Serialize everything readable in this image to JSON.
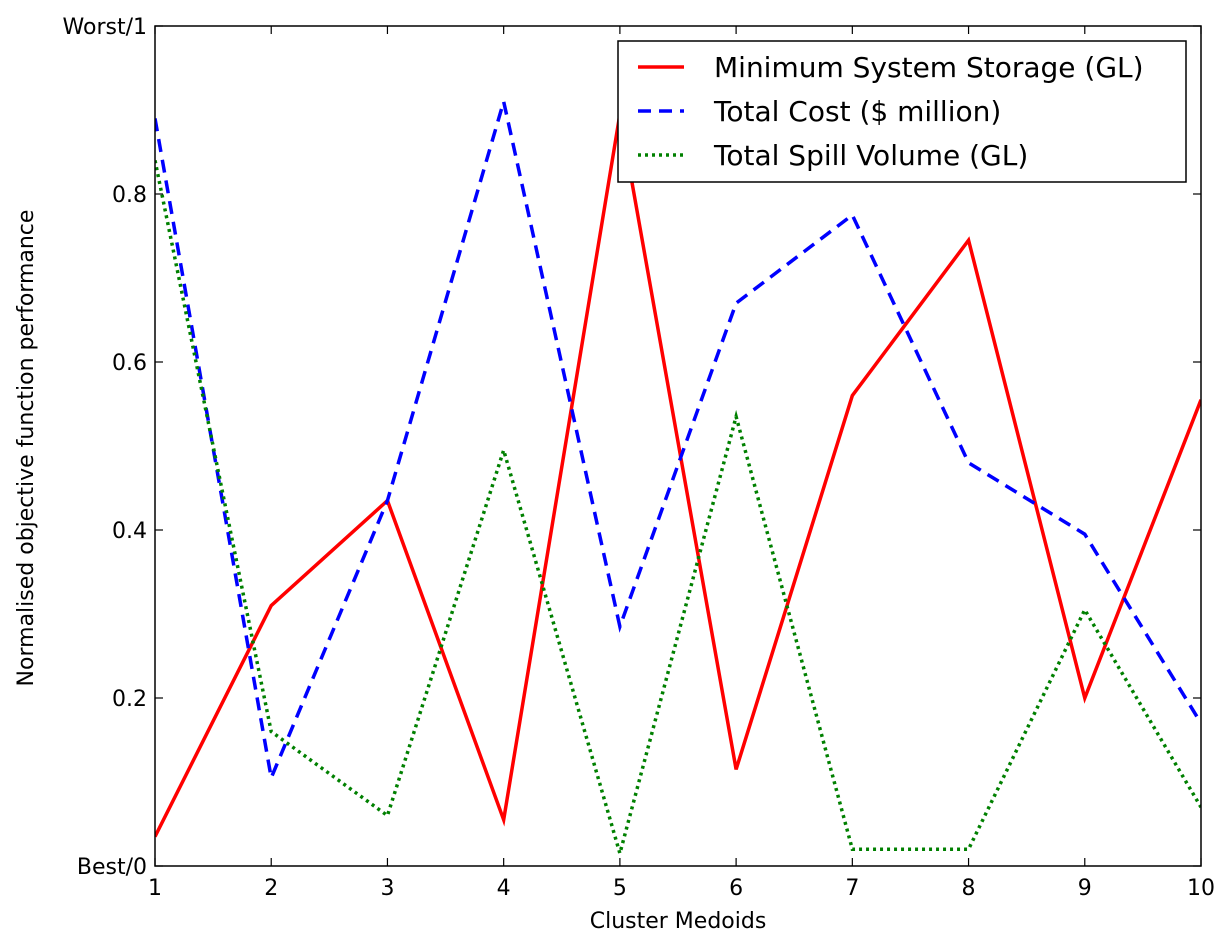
{
  "chart_data": {
    "type": "line",
    "title": "",
    "xlabel": "Cluster Medoids",
    "ylabel": "Normalised objective function performance",
    "x": [
      1,
      2,
      3,
      4,
      5,
      6,
      7,
      8,
      9,
      10
    ],
    "xlim": [
      1,
      10
    ],
    "ylim": [
      0,
      1
    ],
    "x_ticks": [
      "1",
      "2",
      "3",
      "4",
      "5",
      "6",
      "7",
      "8",
      "9",
      "10"
    ],
    "y_ticks": [
      {
        "value": 0,
        "label": "Best/0"
      },
      {
        "value": 0.2,
        "label": "0.2"
      },
      {
        "value": 0.4,
        "label": "0.4"
      },
      {
        "value": 0.6,
        "label": "0.6"
      },
      {
        "value": 0.8,
        "label": "0.8"
      },
      {
        "value": 1,
        "label": "Worst/1"
      }
    ],
    "grid": false,
    "legend_position": "top-right",
    "series": [
      {
        "name": "Minimum System Storage (GL)",
        "color": "#ff0000",
        "style": "solid",
        "values": [
          0.035,
          0.31,
          0.435,
          0.055,
          0.895,
          0.115,
          0.56,
          0.745,
          0.2,
          0.555
        ]
      },
      {
        "name": "Total Cost ($ million)",
        "color": "#0000ff",
        "style": "dashed",
        "values": [
          0.89,
          0.105,
          0.435,
          0.91,
          0.285,
          0.67,
          0.775,
          0.48,
          0.395,
          0.17
        ]
      },
      {
        "name": "Total Spill Volume (GL)",
        "color": "#008000",
        "style": "dotted",
        "values": [
          0.84,
          0.16,
          0.06,
          0.495,
          0.015,
          0.535,
          0.02,
          0.02,
          0.305,
          0.07
        ]
      }
    ]
  }
}
